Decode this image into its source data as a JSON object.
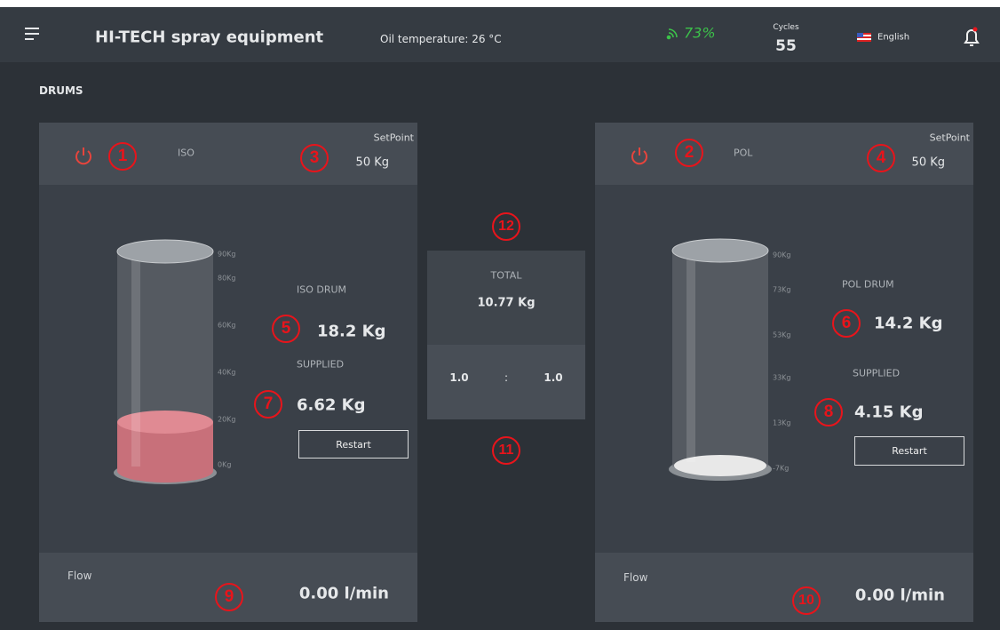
{
  "header": {
    "title": "HI-TECH spray equipment",
    "oil_temperature": "Oil temperature: 26 °C",
    "signal": "73%",
    "cycles_label": "Cycles",
    "cycles": "55",
    "language": "English"
  },
  "section_title": "DRUMS",
  "left_drum": {
    "name": "ISO",
    "setpoint_label": "SetPoint",
    "setpoint": "50 Kg",
    "scale": [
      "90Kg",
      "80Kg",
      "60Kg",
      "40Kg",
      "20Kg",
      "0Kg"
    ],
    "drum_label": "ISO DRUM",
    "drum_value": "18.2 Kg",
    "supplied_label": "SUPPLIED",
    "supplied_value": "6.62 Kg",
    "restart": "Restart",
    "flow_label": "Flow",
    "flow_value": "0.00 l/min"
  },
  "right_drum": {
    "name": "POL",
    "setpoint_label": "SetPoint",
    "setpoint": "50 Kg",
    "scale": [
      "90Kg",
      "73Kg",
      "53Kg",
      "33Kg",
      "13Kg",
      "-7Kg"
    ],
    "drum_label": "POL DRUM",
    "drum_value": "14.2 Kg",
    "supplied_label": "SUPPLIED",
    "supplied_value": "4.15 Kg",
    "restart": "Restart",
    "flow_label": "Flow",
    "flow_value": "0.00 l/min"
  },
  "center": {
    "total_label": "TOTAL",
    "total": "10.77 Kg",
    "ratio_left": "1.0",
    "ratio_separator": ":",
    "ratio_right": "1.0"
  },
  "annotations": [
    "1",
    "2",
    "3",
    "4",
    "5",
    "6",
    "7",
    "8",
    "9",
    "10",
    "11",
    "12"
  ]
}
